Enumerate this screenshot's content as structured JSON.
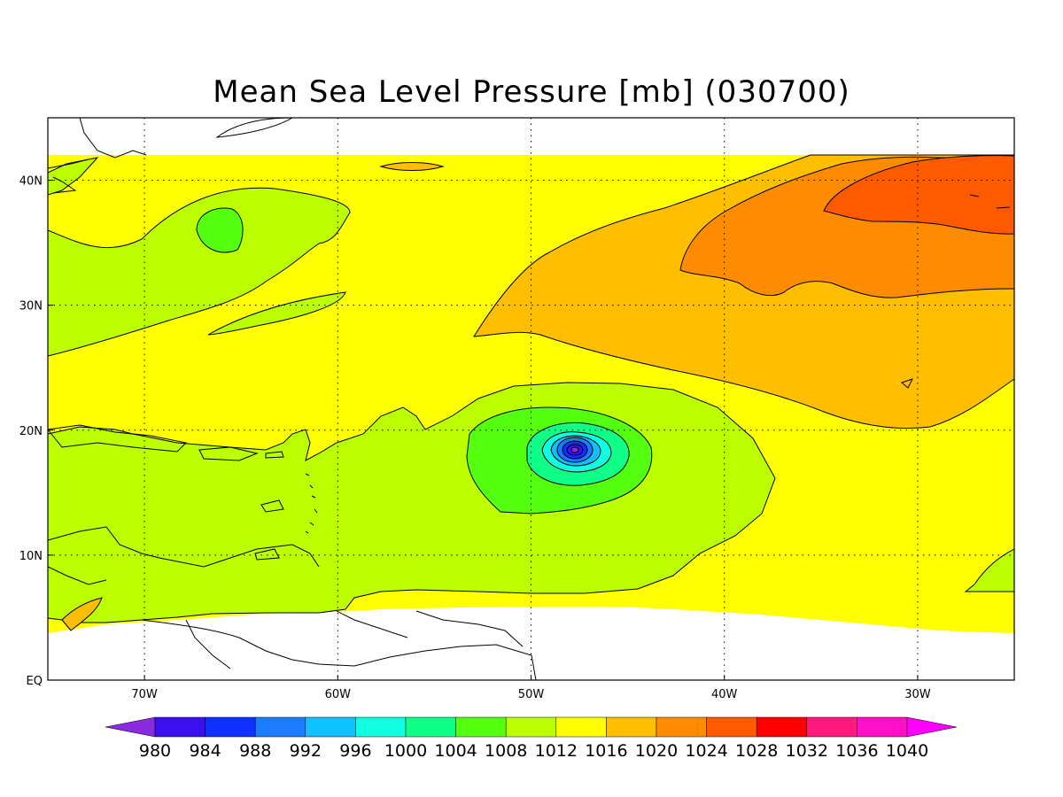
{
  "title": "Mean Sea Level Pressure [mb] (030700)",
  "map": {
    "x_ticks": [
      {
        "lon": -70,
        "label": "70W"
      },
      {
        "lon": -60,
        "label": "60W"
      },
      {
        "lon": -50,
        "label": "50W"
      },
      {
        "lon": -40,
        "label": "40W"
      },
      {
        "lon": -30,
        "label": "30W"
      }
    ],
    "y_ticks": [
      {
        "lat": 0,
        "label": "EQ"
      },
      {
        "lat": 10,
        "label": "10N"
      },
      {
        "lat": 20,
        "label": "20N"
      },
      {
        "lat": 30,
        "label": "30N"
      },
      {
        "lat": 40,
        "label": "40N"
      }
    ],
    "lon_range": [
      -75,
      -25
    ],
    "lat_range": [
      0,
      45
    ],
    "gridlines": "dotted"
  },
  "colorbar": {
    "labels": [
      "980",
      "984",
      "988",
      "992",
      "996",
      "1000",
      "1004",
      "1008",
      "1012",
      "1016",
      "1020",
      "1024",
      "1028",
      "1032",
      "1036",
      "1040"
    ],
    "colors": [
      "#8a2be2",
      "#3a10f0",
      "#1030ff",
      "#1c7cff",
      "#10c0ff",
      "#10ffe0",
      "#10ff88",
      "#55ff10",
      "#bbff00",
      "#ffff00",
      "#ffbe00",
      "#ff8c00",
      "#ff5a00",
      "#ff0000",
      "#ff1a80",
      "#ff10c8",
      "#ff00ff"
    ]
  },
  "low_center": {
    "lon": -47.5,
    "lat": 18.5,
    "pressure_mb_min": 980
  },
  "high_center": {
    "lon": -28,
    "lat": 40,
    "pressure_mb_max": 1028
  }
}
